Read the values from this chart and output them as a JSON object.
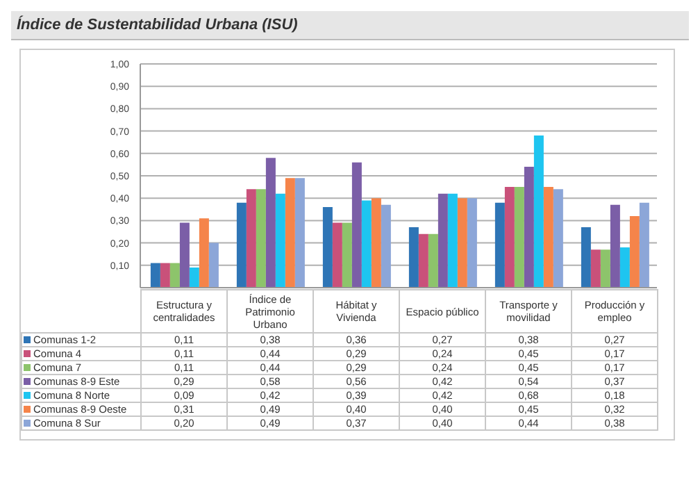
{
  "chart_data": {
    "type": "bar",
    "title": "Índice de Sustentabilidad Urbana (ISU)",
    "categories": [
      "Estructura y centralidades",
      "Índice de Patrimonio Urbano",
      "Hábitat y Vivienda",
      "Espacio público",
      "Transporte y movilidad",
      "Producción y empleo"
    ],
    "series": [
      {
        "name": "Comunas 1-2",
        "color": "#2e75b6",
        "values": [
          0.11,
          0.38,
          0.36,
          0.27,
          0.38,
          0.27
        ],
        "value_labels": [
          "0,11",
          "0,38",
          "0,36",
          "0,27",
          "0,38",
          "0,27"
        ]
      },
      {
        "name": "Comuna 4",
        "color": "#c9517a",
        "values": [
          0.11,
          0.44,
          0.29,
          0.24,
          0.45,
          0.17
        ],
        "value_labels": [
          "0,11",
          "0,44",
          "0,29",
          "0,24",
          "0,45",
          "0,17"
        ]
      },
      {
        "name": "Comuna 7",
        "color": "#8dc46b",
        "values": [
          0.11,
          0.44,
          0.29,
          0.24,
          0.45,
          0.17
        ],
        "value_labels": [
          "0,11",
          "0,44",
          "0,29",
          "0,24",
          "0,45",
          "0,17"
        ]
      },
      {
        "name": "Comunas 8-9 Este",
        "color": "#7b5ea7",
        "values": [
          0.29,
          0.58,
          0.56,
          0.42,
          0.54,
          0.37
        ],
        "value_labels": [
          "0,29",
          "0,58",
          "0,56",
          "0,42",
          "0,54",
          "0,37"
        ]
      },
      {
        "name": "Comuna 8 Norte",
        "color": "#1ec5f0",
        "values": [
          0.09,
          0.42,
          0.39,
          0.42,
          0.68,
          0.18
        ],
        "value_labels": [
          "0,09",
          "0,42",
          "0,39",
          "0,42",
          "0,68",
          "0,18"
        ]
      },
      {
        "name": "Comunas 8-9 Oeste",
        "color": "#f5844a",
        "values": [
          0.31,
          0.49,
          0.4,
          0.4,
          0.45,
          0.32
        ],
        "value_labels": [
          "0,31",
          "0,49",
          "0,40",
          "0,40",
          "0,45",
          "0,32"
        ]
      },
      {
        "name": "Comuna 8 Sur",
        "color": "#8ca6d8",
        "values": [
          0.2,
          0.49,
          0.37,
          0.4,
          0.44,
          0.38
        ],
        "value_labels": [
          "0,20",
          "0,49",
          "0,37",
          "0,40",
          "0,44",
          "0,38"
        ]
      }
    ],
    "ylim": [
      0,
      1
    ],
    "yticks": [
      {
        "value": 0,
        "label": null
      },
      {
        "value": 0.1,
        "label": "0,10"
      },
      {
        "value": 0.2,
        "label": "0,20"
      },
      {
        "value": 0.3,
        "label": "0,30"
      },
      {
        "value": 0.4,
        "label": "0,40"
      },
      {
        "value": 0.5,
        "label": "0,50"
      },
      {
        "value": 0.6,
        "label": "0,60"
      },
      {
        "value": 0.7,
        "label": "0,70"
      },
      {
        "value": 0.8,
        "label": "0,80"
      },
      {
        "value": 0.9,
        "label": "0,90"
      },
      {
        "value": 1,
        "label": "1,00"
      }
    ],
    "grid": "y",
    "legend": "bottom"
  }
}
